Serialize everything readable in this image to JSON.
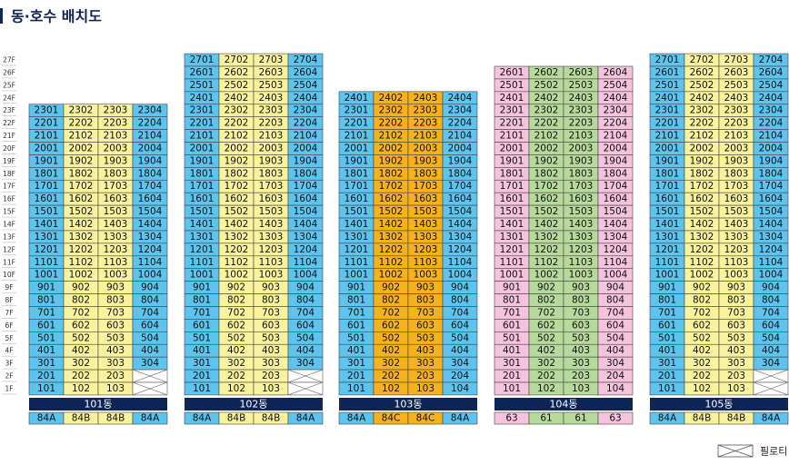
{
  "title": "동·호수 배치도",
  "legend": "필로티",
  "floors": [
    "27F",
    "26F",
    "25F",
    "24F",
    "23F",
    "22F",
    "21F",
    "20F",
    "19F",
    "18F",
    "17F",
    "16F",
    "15F",
    "14F",
    "13F",
    "12F",
    "11F",
    "10F",
    "9F",
    "8F",
    "7F",
    "6F",
    "5F",
    "4F",
    "3F",
    "2F",
    "1F"
  ],
  "buildings": [
    {
      "name": "101동",
      "colors": [
        "#5cc4ee",
        "#f8f39c",
        "#f8f39c",
        "#5cc4ee"
      ],
      "types": [
        "84A",
        "84B",
        "84B",
        "84A"
      ],
      "units": [
        [
          "2301",
          "2302",
          "2303",
          "2304"
        ],
        [
          "2201",
          "2202",
          "2203",
          "2204"
        ],
        [
          "2101",
          "2102",
          "2103",
          "2104"
        ],
        [
          "2001",
          "2002",
          "2003",
          "2004"
        ],
        [
          "1901",
          "1902",
          "1903",
          "1904"
        ],
        [
          "1801",
          "1802",
          "1803",
          "1804"
        ],
        [
          "1701",
          "1702",
          "1703",
          "1704"
        ],
        [
          "1601",
          "1602",
          "1603",
          "1604"
        ],
        [
          "1501",
          "1502",
          "1503",
          "1504"
        ],
        [
          "1401",
          "1402",
          "1403",
          "1404"
        ],
        [
          "1301",
          "1302",
          "1303",
          "1304"
        ],
        [
          "1201",
          "1202",
          "1203",
          "1204"
        ],
        [
          "1101",
          "1102",
          "1103",
          "1104"
        ],
        [
          "1001",
          "1002",
          "1003",
          "1004"
        ],
        [
          "901",
          "902",
          "903",
          "904"
        ],
        [
          "801",
          "802",
          "803",
          "804"
        ],
        [
          "701",
          "702",
          "703",
          "704"
        ],
        [
          "601",
          "602",
          "603",
          "604"
        ],
        [
          "501",
          "502",
          "503",
          "504"
        ],
        [
          "401",
          "402",
          "403",
          "404"
        ],
        [
          "301",
          "302",
          "303",
          "304"
        ],
        [
          "201",
          "202",
          "203"
        ],
        [
          "101",
          "102",
          "103"
        ]
      ]
    },
    {
      "name": "102동",
      "colors": [
        "#5cc4ee",
        "#f8f39c",
        "#f8f39c",
        "#5cc4ee"
      ],
      "types": [
        "84A",
        "84B",
        "84B",
        "84A"
      ],
      "units": [
        [
          "2701",
          "2702",
          "2703",
          "2704"
        ],
        [
          "2601",
          "2602",
          "2603",
          "2604"
        ],
        [
          "2501",
          "2502",
          "2503",
          "2504"
        ],
        [
          "2401",
          "2402",
          "2403",
          "2404"
        ],
        [
          "2301",
          "2302",
          "2303",
          "2304"
        ],
        [
          "2201",
          "2202",
          "2203",
          "2204"
        ],
        [
          "2101",
          "2102",
          "2103",
          "2104"
        ],
        [
          "2001",
          "2002",
          "2003",
          "2004"
        ],
        [
          "1901",
          "1902",
          "1903",
          "1904"
        ],
        [
          "1801",
          "1802",
          "1803",
          "1804"
        ],
        [
          "1701",
          "1702",
          "1703",
          "1704"
        ],
        [
          "1601",
          "1602",
          "1603",
          "1604"
        ],
        [
          "1501",
          "1502",
          "1503",
          "1504"
        ],
        [
          "1401",
          "1402",
          "1403",
          "1404"
        ],
        [
          "1301",
          "1302",
          "1303",
          "1304"
        ],
        [
          "1201",
          "1202",
          "1203",
          "1204"
        ],
        [
          "1101",
          "1102",
          "1103",
          "1104"
        ],
        [
          "1001",
          "1002",
          "1003",
          "1004"
        ],
        [
          "901",
          "902",
          "903",
          "904"
        ],
        [
          "801",
          "802",
          "803",
          "804"
        ],
        [
          "701",
          "702",
          "703",
          "704"
        ],
        [
          "601",
          "602",
          "603",
          "604"
        ],
        [
          "501",
          "502",
          "503",
          "504"
        ],
        [
          "401",
          "402",
          "403",
          "404"
        ],
        [
          "301",
          "302",
          "303",
          "304"
        ],
        [
          "201",
          "202",
          "203"
        ],
        [
          "101",
          "102",
          "103"
        ]
      ]
    },
    {
      "name": "103동",
      "colors": [
        "#5cc4ee",
        "#f6b21c",
        "#f6b21c",
        "#5cc4ee"
      ],
      "types": [
        "84A",
        "84C",
        "84C",
        "84A"
      ],
      "units": [
        [
          "2401",
          "2402",
          "2403",
          "2404"
        ],
        [
          "2301",
          "2302",
          "2303",
          "2304"
        ],
        [
          "2201",
          "2202",
          "2203",
          "2204"
        ],
        [
          "2101",
          "2102",
          "2103",
          "2104"
        ],
        [
          "2001",
          "2002",
          "2003",
          "2004"
        ],
        [
          "1901",
          "1902",
          "1903",
          "1904"
        ],
        [
          "1801",
          "1802",
          "1803",
          "1804"
        ],
        [
          "1701",
          "1702",
          "1703",
          "1704"
        ],
        [
          "1601",
          "1602",
          "1603",
          "1604"
        ],
        [
          "1501",
          "1502",
          "1503",
          "1504"
        ],
        [
          "1401",
          "1402",
          "1403",
          "1404"
        ],
        [
          "1301",
          "1302",
          "1303",
          "1304"
        ],
        [
          "1201",
          "1202",
          "1203",
          "1204"
        ],
        [
          "1101",
          "1102",
          "1103",
          "1104"
        ],
        [
          "1001",
          "1002",
          "1003",
          "1004"
        ],
        [
          "901",
          "902",
          "903",
          "904"
        ],
        [
          "801",
          "802",
          "803",
          "804"
        ],
        [
          "701",
          "702",
          "703",
          "704"
        ],
        [
          "601",
          "602",
          "603",
          "604"
        ],
        [
          "501",
          "502",
          "503",
          "504"
        ],
        [
          "401",
          "402",
          "403",
          "404"
        ],
        [
          "301",
          "302",
          "303",
          "304"
        ],
        [
          "201",
          "202",
          "203",
          "204"
        ],
        [
          "101",
          "102",
          "103",
          "104"
        ]
      ]
    },
    {
      "name": "104동",
      "colors": [
        "#f5c3dd",
        "#b6da9c",
        "#b6da9c",
        "#f5c3dd"
      ],
      "types": [
        "63",
        "61",
        "61",
        "63"
      ],
      "units": [
        [
          "2601",
          "2602",
          "2603",
          "2604"
        ],
        [
          "2501",
          "2502",
          "2503",
          "2504"
        ],
        [
          "2401",
          "2402",
          "2403",
          "2404"
        ],
        [
          "2301",
          "2302",
          "2303",
          "2304"
        ],
        [
          "2201",
          "2202",
          "2203",
          "2204"
        ],
        [
          "2101",
          "2102",
          "2103",
          "2104"
        ],
        [
          "2001",
          "2002",
          "2003",
          "2004"
        ],
        [
          "1901",
          "1902",
          "1903",
          "1904"
        ],
        [
          "1801",
          "1802",
          "1803",
          "1804"
        ],
        [
          "1701",
          "1702",
          "1703",
          "1704"
        ],
        [
          "1601",
          "1602",
          "1603",
          "1604"
        ],
        [
          "1501",
          "1502",
          "1503",
          "1504"
        ],
        [
          "1401",
          "1402",
          "1403",
          "1404"
        ],
        [
          "1301",
          "1302",
          "1303",
          "1304"
        ],
        [
          "1201",
          "1202",
          "1203",
          "1204"
        ],
        [
          "1101",
          "1102",
          "1103",
          "1104"
        ],
        [
          "1001",
          "1002",
          "1003",
          "1004"
        ],
        [
          "901",
          "902",
          "903",
          "904"
        ],
        [
          "801",
          "802",
          "803",
          "804"
        ],
        [
          "701",
          "702",
          "703",
          "704"
        ],
        [
          "601",
          "602",
          "603",
          "604"
        ],
        [
          "501",
          "502",
          "503",
          "504"
        ],
        [
          "401",
          "402",
          "403",
          "404"
        ],
        [
          "301",
          "302",
          "303",
          "304"
        ],
        [
          "201",
          "202",
          "203",
          "204"
        ],
        [
          "101",
          "102",
          "103",
          "104"
        ]
      ]
    },
    {
      "name": "105동",
      "colors": [
        "#5cc4ee",
        "#f8f39c",
        "#f8f39c",
        "#5cc4ee"
      ],
      "types": [
        "84A",
        "84B",
        "84B",
        "84A"
      ],
      "units": [
        [
          "2701",
          "2702",
          "2703",
          "2704"
        ],
        [
          "2601",
          "2602",
          "2603",
          "2604"
        ],
        [
          "2501",
          "2502",
          "2503",
          "2504"
        ],
        [
          "2401",
          "2402",
          "2403",
          "2404"
        ],
        [
          "2301",
          "2302",
          "2303",
          "2304"
        ],
        [
          "2201",
          "2202",
          "2203",
          "2204"
        ],
        [
          "2101",
          "2102",
          "2103",
          "2104"
        ],
        [
          "2001",
          "2002",
          "2003",
          "2004"
        ],
        [
          "1901",
          "1902",
          "1903",
          "1904"
        ],
        [
          "1801",
          "1802",
          "1803",
          "1804"
        ],
        [
          "1701",
          "1702",
          "1703",
          "1704"
        ],
        [
          "1601",
          "1602",
          "1603",
          "1604"
        ],
        [
          "1501",
          "1502",
          "1503",
          "1504"
        ],
        [
          "1401",
          "1402",
          "1403",
          "1404"
        ],
        [
          "1301",
          "1302",
          "1303",
          "1304"
        ],
        [
          "1201",
          "1202",
          "1203",
          "1204"
        ],
        [
          "1101",
          "1102",
          "1103",
          "1104"
        ],
        [
          "1001",
          "1002",
          "1003",
          "1004"
        ],
        [
          "901",
          "902",
          "903",
          "904"
        ],
        [
          "801",
          "802",
          "803",
          "804"
        ],
        [
          "701",
          "702",
          "703",
          "704"
        ],
        [
          "601",
          "602",
          "603",
          "604"
        ],
        [
          "501",
          "502",
          "503",
          "504"
        ],
        [
          "401",
          "402",
          "403",
          "404"
        ],
        [
          "301",
          "302",
          "303",
          "304"
        ],
        [
          "201",
          "202",
          "203"
        ],
        [
          "101",
          "102",
          "103"
        ]
      ]
    }
  ]
}
